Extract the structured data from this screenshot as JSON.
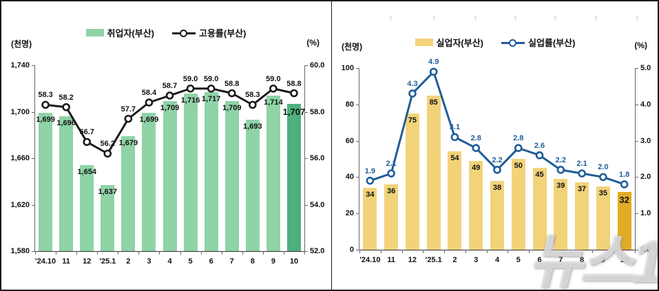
{
  "watermark": "뉴스1",
  "chart_data": [
    {
      "type": "bar+line",
      "title": "",
      "categories": [
        "'24.10",
        "11",
        "12",
        "'25.1",
        "2",
        "3",
        "4",
        "5",
        "6",
        "7",
        "8",
        "9",
        "10"
      ],
      "left_axis": {
        "label": "(천명)",
        "min": 1580,
        "max": 1740,
        "ticks": [
          "1,740",
          "1,700",
          "1,660",
          "1,620",
          "1,580"
        ]
      },
      "right_axis": {
        "label": "(%)",
        "min": 52.0,
        "max": 60.0,
        "ticks": [
          "60.0",
          "58.0",
          "56.0",
          "54.0",
          "52.0"
        ]
      },
      "series": [
        {
          "name": "취업자(부산)",
          "type": "bar",
          "axis": "left",
          "color": "#8fd3a7",
          "last_color": "#4db07d",
          "values": [
            1699,
            1696,
            1654,
            1637,
            1679,
            1699,
            1709,
            1716,
            1717,
            1709,
            1693,
            1714,
            1707
          ],
          "labels": [
            "1,699",
            "1,696",
            "1,654",
            "1,637",
            "1,679",
            "1,699",
            "1,709",
            "1,716",
            "1,717",
            "1,709",
            "1,693",
            "1,714",
            "1,707"
          ]
        },
        {
          "name": "고용률(부산)",
          "type": "line",
          "axis": "right",
          "color": "#1a1a1a",
          "label_color": "#111111",
          "values": [
            58.3,
            58.2,
            56.7,
            56.2,
            57.7,
            58.4,
            58.7,
            59.0,
            59.0,
            58.8,
            58.3,
            59.0,
            58.8
          ],
          "labels": [
            "58.3",
            "58.2",
            "56.7",
            "56.2",
            "57.7",
            "58.4",
            "58.7",
            "59.0",
            "59.0",
            "58.8",
            "58.3",
            "59.0",
            "58.8"
          ]
        }
      ]
    },
    {
      "type": "bar+line",
      "title": "",
      "categories": [
        "'24.10",
        "11",
        "12",
        "'25.1",
        "2",
        "3",
        "4",
        "5",
        "6",
        "7",
        "8",
        "9",
        "10"
      ],
      "left_axis": {
        "label": "(천명)",
        "min": 0,
        "max": 100,
        "ticks": [
          "100",
          "80",
          "60",
          "40",
          "20",
          "0"
        ]
      },
      "right_axis": {
        "label": "(%)",
        "min": 0.0,
        "max": 5.0,
        "ticks": [
          "5.0",
          "4.0",
          "3.0",
          "2.0",
          "1.0",
          "0.0"
        ]
      },
      "series": [
        {
          "name": "실업자(부산)",
          "type": "bar",
          "axis": "left",
          "color": "#f2d37a",
          "last_color": "#e2ac27",
          "values": [
            34,
            36,
            75,
            85,
            54,
            49,
            38,
            50,
            45,
            39,
            37,
            35,
            32
          ],
          "labels": [
            "34",
            "36",
            "75",
            "85",
            "54",
            "49",
            "38",
            "50",
            "45",
            "39",
            "37",
            "35",
            "32"
          ]
        },
        {
          "name": "실업률(부산)",
          "type": "line",
          "axis": "right",
          "color": "#1f5c99",
          "label_color": "#1f5c99",
          "values": [
            1.9,
            2.1,
            4.3,
            4.9,
            3.1,
            2.8,
            2.2,
            2.8,
            2.6,
            2.2,
            2.1,
            2.0,
            1.8
          ],
          "labels": [
            "1.9",
            "2.1",
            "4.3",
            "4.9",
            "3.1",
            "2.8",
            "2.2",
            "2.8",
            "2.6",
            "2.2",
            "2.1",
            "2.0",
            "1.8"
          ]
        }
      ]
    }
  ]
}
